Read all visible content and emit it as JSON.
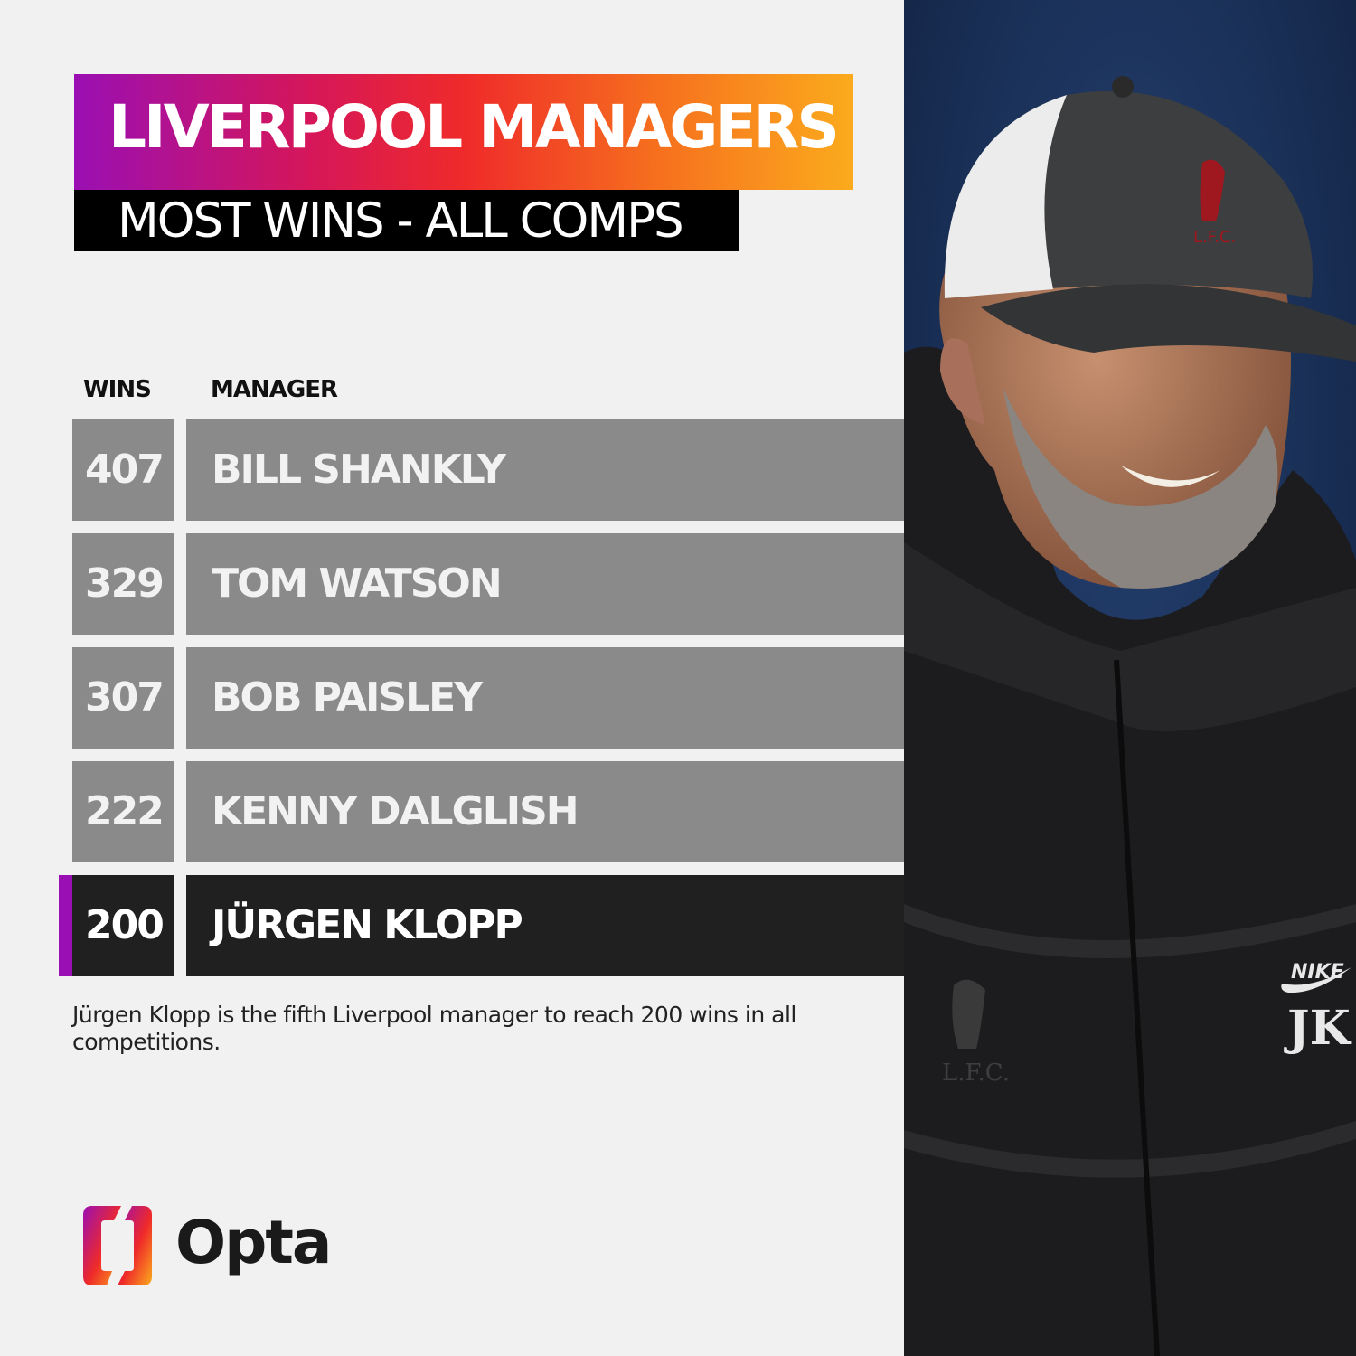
{
  "header": {
    "title": "LIVERPOOL MANAGERS",
    "subtitle": "MOST WINS - ALL COMPS"
  },
  "table": {
    "columns": {
      "wins": "WINS",
      "manager": "MANAGER"
    },
    "rows": [
      {
        "wins": "407",
        "manager": "BILL SHANKLY"
      },
      {
        "wins": "329",
        "manager": "TOM WATSON"
      },
      {
        "wins": "307",
        "manager": "BOB PAISLEY"
      },
      {
        "wins": "222",
        "manager": "KENNY DALGLISH"
      },
      {
        "wins": "200",
        "manager": "JÜRGEN KLOPP"
      }
    ]
  },
  "footnote": "Jürgen Klopp is the fifth Liverpool manager to reach 200 wins in all competitions.",
  "brand": {
    "logo": "Opta"
  },
  "colors": {
    "gradient_start": "#9a0fb3",
    "gradient_end": "#fbab1d",
    "row_grey": "#8a8a8a",
    "row_highlight": "#202020",
    "accent": "#9a0fb3"
  },
  "photo": {
    "cap_crest": "L.F.C.",
    "jacket_crest": "L.F.C.",
    "jacket_brand": "NIKE",
    "jacket_initials": "JK"
  }
}
